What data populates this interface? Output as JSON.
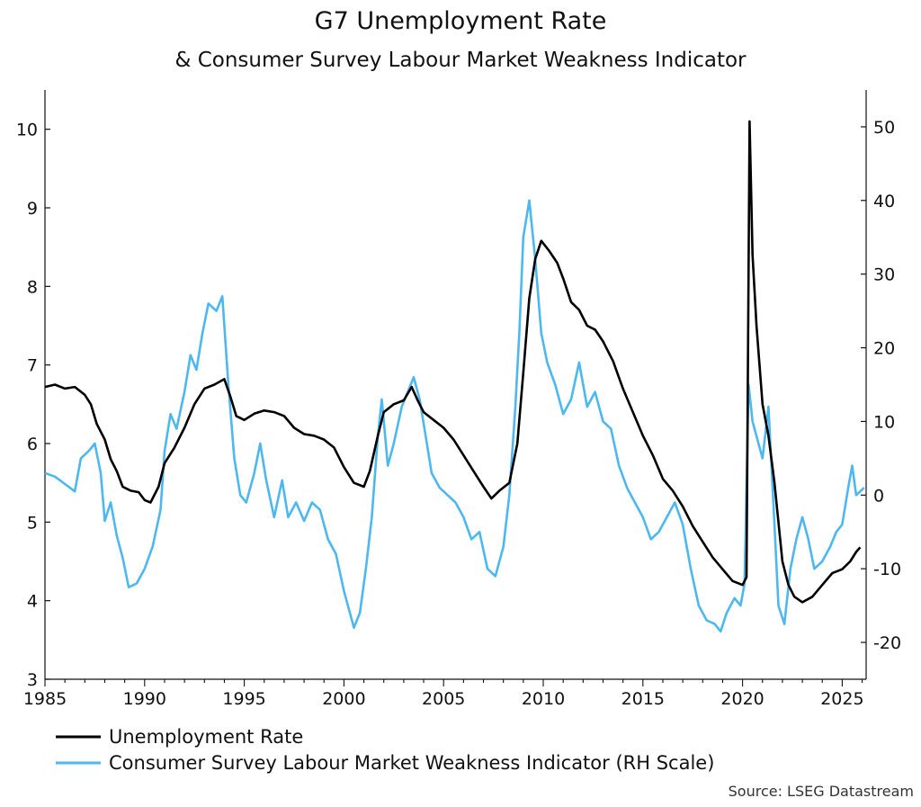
{
  "chart_data": {
    "type": "line",
    "title": "G7 Unemployment Rate",
    "subtitle": "& Consumer Survey Labour Market Weakness Indicator",
    "source": "Source: LSEG Datastream",
    "x_range": [
      1985,
      2026.2
    ],
    "x_ticks": [
      "1985",
      "1990",
      "1995",
      "2000",
      "2005",
      "2010",
      "2015",
      "2020",
      "2025"
    ],
    "y_left": {
      "range": [
        3,
        10.5
      ],
      "ticks": [
        "3",
        "4",
        "5",
        "6",
        "7",
        "8",
        "9",
        "10"
      ]
    },
    "y_right": {
      "range": [
        -25,
        55
      ],
      "ticks": [
        "-20",
        "-10",
        "0",
        "10",
        "20",
        "30",
        "40",
        "50"
      ]
    },
    "grid": false,
    "legend_position": "bottom-left",
    "series": [
      {
        "name": "Unemployment Rate",
        "axis": "left",
        "color": "#000000",
        "points": [
          [
            1985.0,
            6.72
          ],
          [
            1985.5,
            6.75
          ],
          [
            1986.0,
            6.7
          ],
          [
            1986.5,
            6.72
          ],
          [
            1987.0,
            6.62
          ],
          [
            1987.3,
            6.5
          ],
          [
            1987.6,
            6.25
          ],
          [
            1988.0,
            6.05
          ],
          [
            1988.3,
            5.8
          ],
          [
            1988.6,
            5.65
          ],
          [
            1988.9,
            5.45
          ],
          [
            1989.3,
            5.4
          ],
          [
            1989.7,
            5.38
          ],
          [
            1990.0,
            5.28
          ],
          [
            1990.3,
            5.25
          ],
          [
            1990.7,
            5.45
          ],
          [
            1991.0,
            5.75
          ],
          [
            1991.5,
            5.95
          ],
          [
            1992.0,
            6.2
          ],
          [
            1992.5,
            6.5
          ],
          [
            1993.0,
            6.7
          ],
          [
            1993.5,
            6.75
          ],
          [
            1994.0,
            6.82
          ],
          [
            1994.3,
            6.6
          ],
          [
            1994.6,
            6.35
          ],
          [
            1995.0,
            6.3
          ],
          [
            1995.5,
            6.38
          ],
          [
            1996.0,
            6.42
          ],
          [
            1996.5,
            6.4
          ],
          [
            1997.0,
            6.35
          ],
          [
            1997.5,
            6.2
          ],
          [
            1998.0,
            6.12
          ],
          [
            1998.5,
            6.1
          ],
          [
            1999.0,
            6.05
          ],
          [
            1999.5,
            5.95
          ],
          [
            2000.0,
            5.7
          ],
          [
            2000.5,
            5.5
          ],
          [
            2001.0,
            5.45
          ],
          [
            2001.3,
            5.65
          ],
          [
            2001.7,
            6.1
          ],
          [
            2002.0,
            6.4
          ],
          [
            2002.5,
            6.5
          ],
          [
            2003.0,
            6.55
          ],
          [
            2003.4,
            6.72
          ],
          [
            2003.7,
            6.55
          ],
          [
            2004.0,
            6.4
          ],
          [
            2004.5,
            6.3
          ],
          [
            2005.0,
            6.2
          ],
          [
            2005.5,
            6.05
          ],
          [
            2006.0,
            5.85
          ],
          [
            2006.5,
            5.65
          ],
          [
            2007.0,
            5.45
          ],
          [
            2007.4,
            5.3
          ],
          [
            2007.8,
            5.4
          ],
          [
            2008.3,
            5.5
          ],
          [
            2008.7,
            6.0
          ],
          [
            2009.0,
            6.9
          ],
          [
            2009.3,
            7.85
          ],
          [
            2009.6,
            8.35
          ],
          [
            2009.9,
            8.58
          ],
          [
            2010.3,
            8.45
          ],
          [
            2010.7,
            8.3
          ],
          [
            2011.0,
            8.1
          ],
          [
            2011.4,
            7.8
          ],
          [
            2011.8,
            7.7
          ],
          [
            2012.2,
            7.5
          ],
          [
            2012.6,
            7.45
          ],
          [
            2013.0,
            7.3
          ],
          [
            2013.5,
            7.05
          ],
          [
            2014.0,
            6.7
          ],
          [
            2014.5,
            6.4
          ],
          [
            2015.0,
            6.1
          ],
          [
            2015.5,
            5.85
          ],
          [
            2016.0,
            5.55
          ],
          [
            2016.5,
            5.4
          ],
          [
            2017.0,
            5.2
          ],
          [
            2017.5,
            4.95
          ],
          [
            2018.0,
            4.75
          ],
          [
            2018.5,
            4.55
          ],
          [
            2019.0,
            4.4
          ],
          [
            2019.5,
            4.25
          ],
          [
            2020.0,
            4.2
          ],
          [
            2020.2,
            4.3
          ],
          [
            2020.35,
            10.1
          ],
          [
            2020.5,
            8.4
          ],
          [
            2020.7,
            7.5
          ],
          [
            2021.0,
            6.5
          ],
          [
            2021.3,
            6.1
          ],
          [
            2021.6,
            5.5
          ],
          [
            2022.0,
            4.5
          ],
          [
            2022.3,
            4.2
          ],
          [
            2022.6,
            4.05
          ],
          [
            2023.0,
            3.98
          ],
          [
            2023.5,
            4.05
          ],
          [
            2024.0,
            4.2
          ],
          [
            2024.5,
            4.35
          ],
          [
            2025.0,
            4.4
          ],
          [
            2025.4,
            4.5
          ],
          [
            2025.7,
            4.62
          ],
          [
            2025.9,
            4.68
          ]
        ]
      },
      {
        "name": "Consumer Survey Labour Market Weakness Indicator (RH Scale)",
        "axis": "right",
        "color": "#4DB8F0",
        "points": [
          [
            1985.0,
            3.0
          ],
          [
            1985.5,
            2.5
          ],
          [
            1986.0,
            1.5
          ],
          [
            1986.5,
            0.5
          ],
          [
            1986.8,
            5.0
          ],
          [
            1987.2,
            6.0
          ],
          [
            1987.5,
            7.0
          ],
          [
            1987.8,
            3.0
          ],
          [
            1988.0,
            -3.5
          ],
          [
            1988.3,
            -1.0
          ],
          [
            1988.6,
            -5.5
          ],
          [
            1988.9,
            -8.5
          ],
          [
            1989.2,
            -12.5
          ],
          [
            1989.6,
            -12.0
          ],
          [
            1990.0,
            -10.0
          ],
          [
            1990.4,
            -7.0
          ],
          [
            1990.8,
            -2.0
          ],
          [
            1991.0,
            6.0
          ],
          [
            1991.3,
            11.0
          ],
          [
            1991.6,
            9.0
          ],
          [
            1992.0,
            14.0
          ],
          [
            1992.3,
            19.0
          ],
          [
            1992.6,
            17.0
          ],
          [
            1992.9,
            22.0
          ],
          [
            1993.2,
            26.0
          ],
          [
            1993.6,
            25.0
          ],
          [
            1993.9,
            27.0
          ],
          [
            1994.2,
            15.0
          ],
          [
            1994.5,
            5.0
          ],
          [
            1994.8,
            0.0
          ],
          [
            1995.1,
            -1.0
          ],
          [
            1995.5,
            3.0
          ],
          [
            1995.8,
            7.0
          ],
          [
            1996.1,
            2.0
          ],
          [
            1996.5,
            -3.0
          ],
          [
            1996.9,
            2.0
          ],
          [
            1997.2,
            -3.0
          ],
          [
            1997.6,
            -1.0
          ],
          [
            1998.0,
            -3.5
          ],
          [
            1998.4,
            -1.0
          ],
          [
            1998.8,
            -2.0
          ],
          [
            1999.2,
            -6.0
          ],
          [
            1999.6,
            -8.0
          ],
          [
            2000.0,
            -13.0
          ],
          [
            2000.5,
            -18.0
          ],
          [
            2000.8,
            -16.0
          ],
          [
            2001.1,
            -10.0
          ],
          [
            2001.4,
            -3.0
          ],
          [
            2001.7,
            8.0
          ],
          [
            2001.9,
            13.0
          ],
          [
            2002.2,
            4.0
          ],
          [
            2002.5,
            7.0
          ],
          [
            2002.9,
            12.0
          ],
          [
            2003.2,
            14.0
          ],
          [
            2003.5,
            16.0
          ],
          [
            2003.8,
            13.0
          ],
          [
            2004.1,
            8.0
          ],
          [
            2004.4,
            3.0
          ],
          [
            2004.8,
            1.0
          ],
          [
            2005.2,
            0.0
          ],
          [
            2005.6,
            -1.0
          ],
          [
            2006.0,
            -3.0
          ],
          [
            2006.4,
            -6.0
          ],
          [
            2006.8,
            -5.0
          ],
          [
            2007.2,
            -10.0
          ],
          [
            2007.6,
            -11.0
          ],
          [
            2008.0,
            -7.0
          ],
          [
            2008.3,
            0.0
          ],
          [
            2008.6,
            12.0
          ],
          [
            2008.8,
            22.0
          ],
          [
            2009.0,
            35.0
          ],
          [
            2009.3,
            40.0
          ],
          [
            2009.6,
            32.0
          ],
          [
            2009.9,
            22.0
          ],
          [
            2010.2,
            18.0
          ],
          [
            2010.6,
            15.0
          ],
          [
            2011.0,
            11.0
          ],
          [
            2011.4,
            13.0
          ],
          [
            2011.8,
            18.0
          ],
          [
            2012.2,
            12.0
          ],
          [
            2012.6,
            14.0
          ],
          [
            2013.0,
            10.0
          ],
          [
            2013.4,
            9.0
          ],
          [
            2013.8,
            4.0
          ],
          [
            2014.2,
            1.0
          ],
          [
            2014.6,
            -1.0
          ],
          [
            2015.0,
            -3.0
          ],
          [
            2015.4,
            -6.0
          ],
          [
            2015.8,
            -5.0
          ],
          [
            2016.2,
            -3.0
          ],
          [
            2016.6,
            -1.0
          ],
          [
            2017.0,
            -4.0
          ],
          [
            2017.4,
            -10.0
          ],
          [
            2017.8,
            -15.0
          ],
          [
            2018.2,
            -17.0
          ],
          [
            2018.6,
            -17.5
          ],
          [
            2018.9,
            -18.5
          ],
          [
            2019.2,
            -16.0
          ],
          [
            2019.6,
            -14.0
          ],
          [
            2019.9,
            -15.0
          ],
          [
            2020.1,
            -12.0
          ],
          [
            2020.3,
            15.0
          ],
          [
            2020.5,
            10.0
          ],
          [
            2020.7,
            8.0
          ],
          [
            2021.0,
            5.0
          ],
          [
            2021.3,
            12.0
          ],
          [
            2021.6,
            -4.0
          ],
          [
            2021.8,
            -15.0
          ],
          [
            2022.1,
            -17.5
          ],
          [
            2022.4,
            -10.0
          ],
          [
            2022.7,
            -6.0
          ],
          [
            2023.0,
            -3.0
          ],
          [
            2023.3,
            -6.0
          ],
          [
            2023.6,
            -10.0
          ],
          [
            2024.0,
            -9.0
          ],
          [
            2024.4,
            -7.0
          ],
          [
            2024.7,
            -5.0
          ],
          [
            2025.0,
            -4.0
          ],
          [
            2025.3,
            1.0
          ],
          [
            2025.5,
            4.0
          ],
          [
            2025.7,
            0.0
          ],
          [
            2025.9,
            0.5
          ],
          [
            2026.1,
            1.0
          ]
        ]
      }
    ]
  }
}
